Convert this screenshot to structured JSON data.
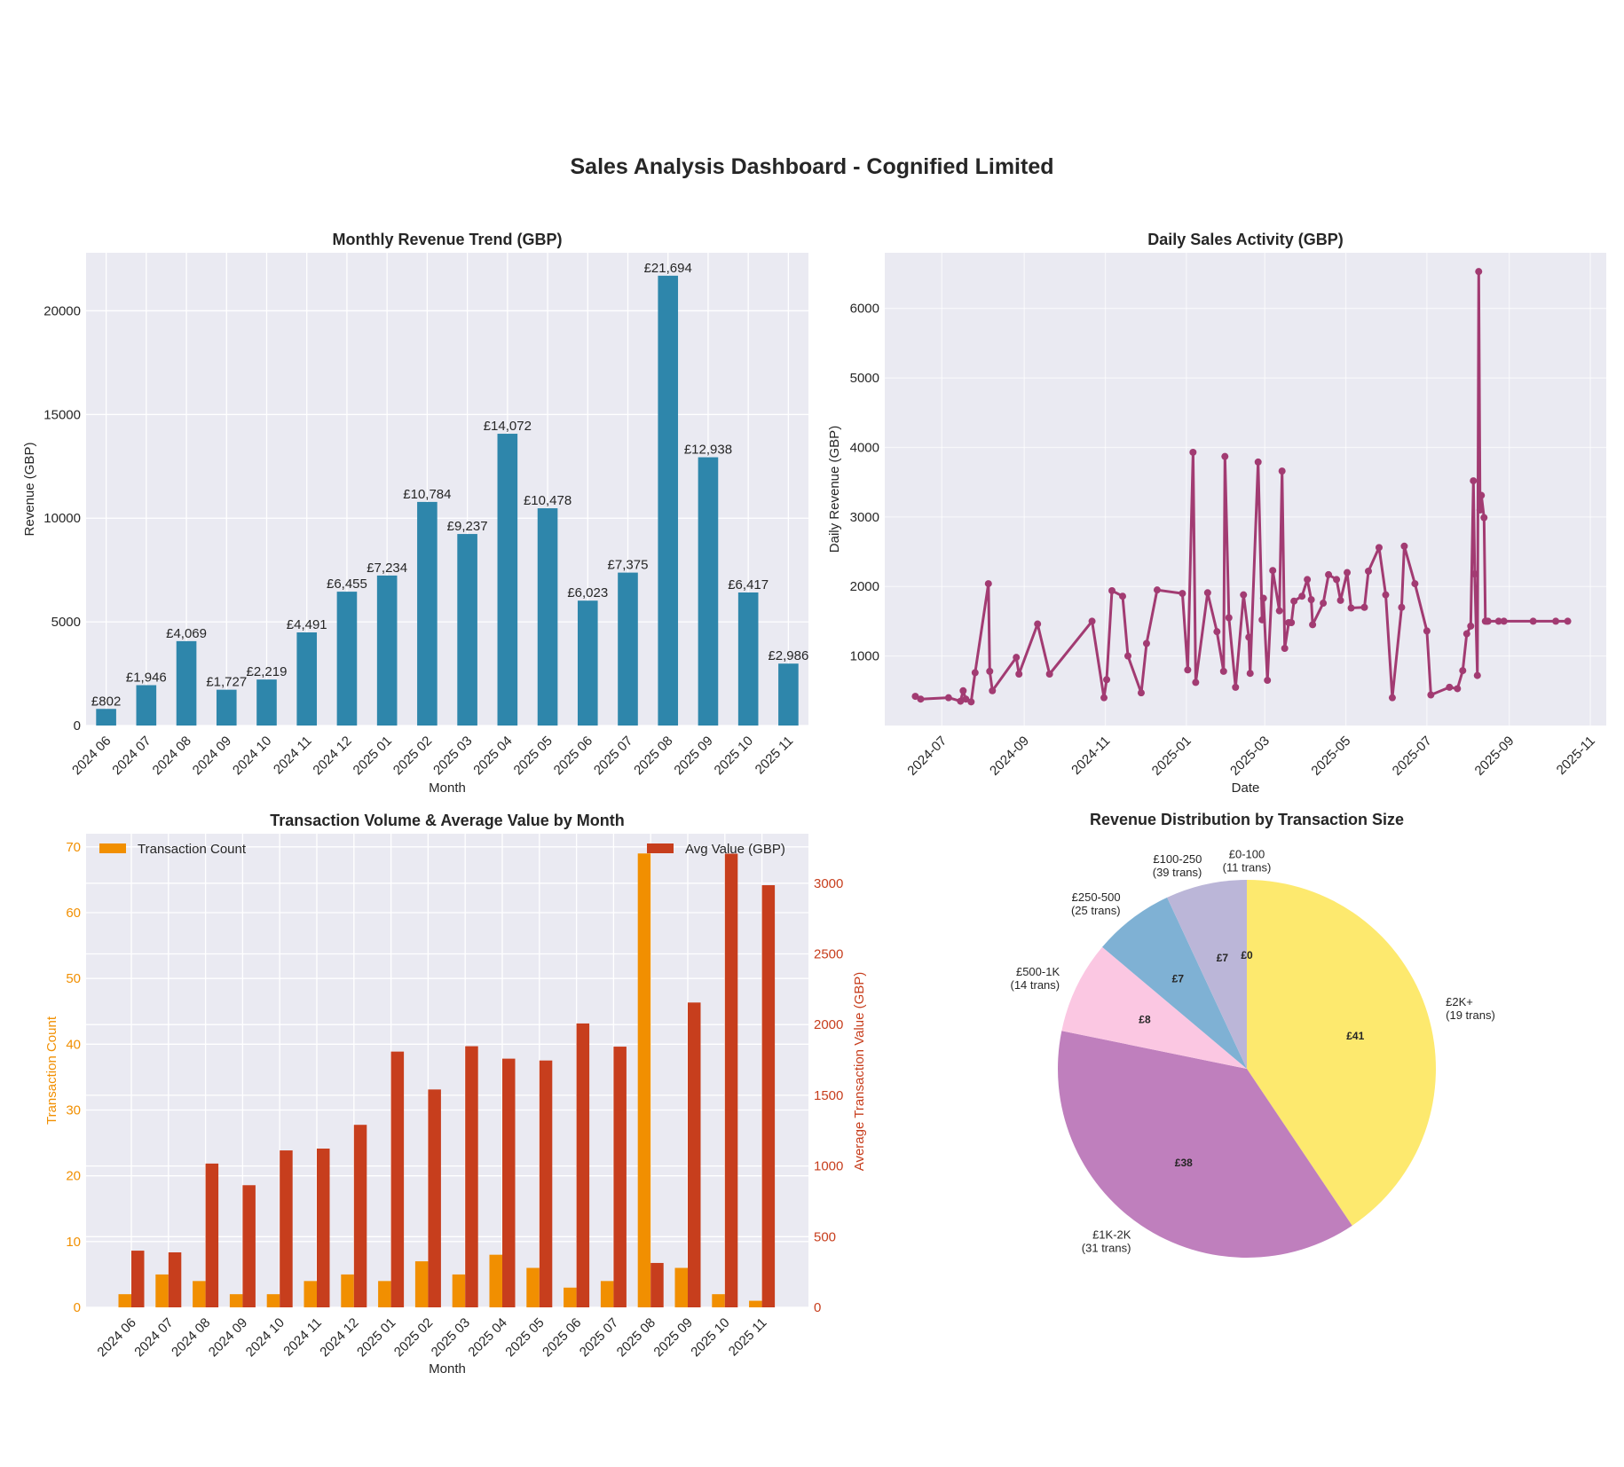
{
  "dashboard_title": "Sales Analysis Dashboard - Cognified Limited",
  "colors": {
    "revenue_bar": "#2e86ab",
    "daily_line": "#a23b72",
    "count_bar": "#f18f01",
    "avg_bar": "#c73e1d",
    "pie": [
      "#fde96e",
      "#bf7fbd",
      "#fbc7e2",
      "#7fb1d4",
      "#bbb6d8",
      "#b3de69"
    ]
  },
  "chart_data": [
    {
      "id": "monthly-revenue",
      "type": "bar",
      "title": "Monthly Revenue Trend (GBP)",
      "xlabel": "Month",
      "ylabel": "Revenue (GBP)",
      "ylim": [
        0,
        22800
      ],
      "yticks": [
        "0",
        "5000",
        "10000",
        "15000",
        "20000"
      ],
      "categories": [
        "2024 06",
        "2024 07",
        "2024 08",
        "2024 09",
        "2024 10",
        "2024 11",
        "2024 12",
        "2025 01",
        "2025 02",
        "2025 03",
        "2025 04",
        "2025 05",
        "2025 06",
        "2025 07",
        "2025 08",
        "2025 09",
        "2025 10",
        "2025 11"
      ],
      "values": [
        802,
        1946,
        4069,
        1727,
        2219,
        4491,
        6455,
        7234,
        10784,
        9237,
        14072,
        10478,
        6023,
        7375,
        21694,
        12938,
        6417,
        2986
      ],
      "data_labels": [
        "£802",
        "£1,946",
        "£4,069",
        "£1,727",
        "£2,219",
        "£4,491",
        "£6,455",
        "£7,234",
        "£10,784",
        "£9,237",
        "£14,072",
        "£10,478",
        "£6,023",
        "£7,375",
        "£21,694",
        "£12,938",
        "£6,417",
        "£2,986"
      ]
    },
    {
      "id": "daily-sales",
      "type": "line",
      "title": "Daily Sales Activity (GBP)",
      "xlabel": "Date",
      "ylabel": "Daily Revenue (GBP)",
      "ylim": [
        0,
        6800
      ],
      "yticks": [
        "1000",
        "2000",
        "3000",
        "4000",
        "5000",
        "6000"
      ],
      "xticks": [
        "2024-07",
        "2024-09",
        "2024-11",
        "2025-01",
        "2025-03",
        "2025-05",
        "2025-07",
        "2025-09",
        "2025-11"
      ],
      "xtick_positions_days": [
        30,
        92,
        153,
        214,
        273,
        334,
        395,
        457,
        518
      ],
      "x": [
        10,
        14,
        35,
        44,
        46,
        48,
        52,
        55,
        65,
        66,
        68,
        86,
        88,
        102,
        111,
        143,
        152,
        154,
        158,
        166,
        170,
        180,
        184,
        192,
        211,
        215,
        219,
        221,
        230,
        237,
        242,
        243,
        246,
        251,
        257,
        261,
        262,
        268,
        271,
        272,
        275,
        279,
        284,
        286,
        288,
        291,
        293,
        295,
        301,
        305,
        308,
        309,
        317,
        321,
        327,
        330,
        335,
        338,
        348,
        351,
        359,
        364,
        369,
        376,
        378,
        386,
        395,
        398,
        412,
        418,
        422,
        425,
        428,
        430,
        431,
        433,
        434,
        435,
        436,
        438,
        439,
        440,
        441,
        449,
        453,
        475,
        492,
        501
      ],
      "y": [
        420,
        380,
        400,
        350,
        500,
        380,
        340,
        760,
        2040,
        780,
        500,
        980,
        740,
        1460,
        740,
        1500,
        400,
        660,
        1940,
        1860,
        1000,
        470,
        1180,
        1950,
        1900,
        800,
        3930,
        620,
        1910,
        1350,
        780,
        3870,
        1550,
        550,
        1880,
        1270,
        750,
        3790,
        1520,
        1830,
        650,
        2230,
        1650,
        3660,
        1110,
        1480,
        1480,
        1790,
        1860,
        2100,
        1810,
        1450,
        1760,
        2170,
        2100,
        1800,
        2200,
        1690,
        1700,
        2220,
        2560,
        1880,
        400,
        1700,
        2580,
        2040,
        1360,
        440,
        550,
        530,
        790,
        1320,
        1430,
        3520,
        2180,
        720,
        6530,
        3100,
        3310,
        2990,
        1500,
        1500,
        1500,
        1500,
        1500,
        1500,
        1500,
        1500
      ]
    },
    {
      "id": "transaction-volume",
      "type": "bar",
      "title": "Transaction Volume & Average Value by Month",
      "xlabel": "Month",
      "ylabel_left": "Transaction Count",
      "ylabel_right": "Average Transaction Value (GBP)",
      "ylim_left": [
        0,
        72
      ],
      "ylim_right": [
        0,
        3350
      ],
      "yticks_left": [
        "0",
        "10",
        "20",
        "30",
        "40",
        "50",
        "60",
        "70"
      ],
      "yticks_right": [
        "0",
        "500",
        "1000",
        "1500",
        "2000",
        "2500",
        "3000"
      ],
      "categories": [
        "2024 06",
        "2024 07",
        "2024 08",
        "2024 09",
        "2024 10",
        "2024 11",
        "2024 12",
        "2025 01",
        "2025 02",
        "2025 03",
        "2025 04",
        "2025 05",
        "2025 06",
        "2025 07",
        "2025 08",
        "2025 09",
        "2025 10",
        "2025 11"
      ],
      "series": [
        {
          "name": "Transaction Count",
          "axis": "left",
          "values": [
            2,
            5,
            4,
            2,
            2,
            4,
            5,
            4,
            7,
            5,
            8,
            6,
            3,
            4,
            69,
            6,
            2,
            1
          ]
        },
        {
          "name": "Avg Value (GBP)",
          "axis": "right",
          "values": [
            401,
            389,
            1017,
            864,
            1110,
            1123,
            1291,
            1809,
            1541,
            1847,
            1759,
            1746,
            2008,
            1844,
            314,
            2156,
            3209,
            2986
          ]
        }
      ]
    },
    {
      "id": "revenue-distribution",
      "type": "pie",
      "title": "Revenue Distribution by Transaction Size",
      "slices": [
        {
          "label": "£2K+",
          "sublabel": "(19 trans)",
          "value": 41,
          "value_label": "£41"
        },
        {
          "label": "£1K-2K",
          "sublabel": "(31 trans)",
          "value": 38,
          "value_label": "£38"
        },
        {
          "label": "£500-1K",
          "sublabel": "(14 trans)",
          "value": 8,
          "value_label": "£8"
        },
        {
          "label": "£250-500",
          "sublabel": "(25 trans)",
          "value": 7,
          "value_label": "£7"
        },
        {
          "label": "£100-250",
          "sublabel": "(39 trans)",
          "value": 7,
          "value_label": "£7"
        },
        {
          "label": "£0-100",
          "sublabel": "(11 trans)",
          "value": 0.0001,
          "value_label": "£0"
        }
      ]
    }
  ]
}
